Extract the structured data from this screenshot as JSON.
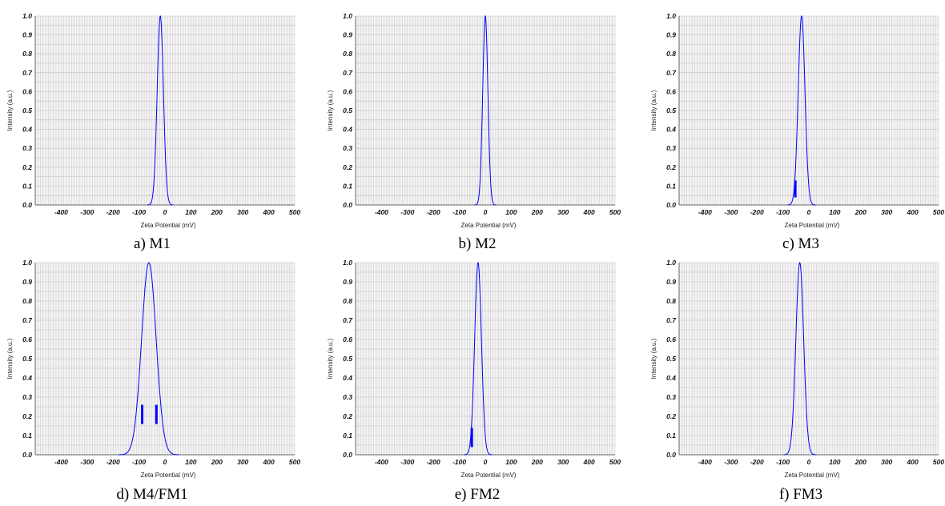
{
  "chart_data": [
    {
      "type": "line",
      "caption": "a) M1",
      "xlabel": "Zeta Potential (mV)",
      "ylabel": "Intensity (a.u.)",
      "xlim": [
        -500,
        500
      ],
      "ylim": [
        0,
        1
      ],
      "x_ticks": [
        "-400",
        "-300",
        "-200",
        "-100",
        "0",
        "100",
        "200",
        "300",
        "400",
        "500"
      ],
      "y_ticks": [
        "0.0",
        "0.1",
        "0.2",
        "0.3",
        "0.4",
        "0.5",
        "0.6",
        "0.7",
        "0.8",
        "0.9",
        "1.0"
      ],
      "grid": true,
      "series": [
        {
          "peak_mV": -18,
          "peak_intensity": 1.0,
          "width_mV": 12,
          "color": "#0000ff"
        }
      ],
      "markers": []
    },
    {
      "type": "line",
      "caption": "b) M2",
      "xlabel": "Zeta Potential (mV)",
      "ylabel": "Intensity (a.u.)",
      "xlim": [
        -500,
        500
      ],
      "ylim": [
        0,
        1
      ],
      "x_ticks": [
        "-400",
        "-300",
        "-200",
        "-100",
        "0",
        "100",
        "200",
        "300",
        "400",
        "500"
      ],
      "y_ticks": [
        "0.0",
        "0.1",
        "0.2",
        "0.3",
        "0.4",
        "0.5",
        "0.6",
        "0.7",
        "0.8",
        "0.9",
        "1.0"
      ],
      "grid": true,
      "series": [
        {
          "peak_mV": 0,
          "peak_intensity": 1.0,
          "width_mV": 10,
          "color": "#0000ff"
        }
      ],
      "markers": []
    },
    {
      "type": "line",
      "caption": "c) M3",
      "xlabel": "Zeta Potential (mV)",
      "ylabel": "Intensity (a.u.)",
      "xlim": [
        -500,
        500
      ],
      "ylim": [
        0,
        1
      ],
      "x_ticks": [
        "-400",
        "-300",
        "-200",
        "-100",
        "0",
        "100",
        "200",
        "300",
        "400",
        "500"
      ],
      "y_ticks": [
        "0.0",
        "0.1",
        "0.2",
        "0.3",
        "0.4",
        "0.5",
        "0.6",
        "0.7",
        "0.8",
        "0.9",
        "1.0"
      ],
      "grid": true,
      "series": [
        {
          "peak_mV": -28,
          "peak_intensity": 1.0,
          "width_mV": 13,
          "color": "#0000ff"
        }
      ],
      "markers": [
        {
          "x_mV": -52,
          "y_low": 0.04,
          "y_high": 0.13
        }
      ]
    },
    {
      "type": "line",
      "caption": "d) M4/FM1",
      "xlabel": "Zeta Potential (mV)",
      "ylabel": "Intensity (a.u.)",
      "xlim": [
        -500,
        500
      ],
      "ylim": [
        0,
        1
      ],
      "x_ticks": [
        "-400",
        "-300",
        "-200",
        "-100",
        "0",
        "100",
        "200",
        "300",
        "400",
        "500"
      ],
      "y_ticks": [
        "0.0",
        "0.1",
        "0.2",
        "0.3",
        "0.4",
        "0.5",
        "0.6",
        "0.7",
        "0.8",
        "0.9",
        "1.0"
      ],
      "grid": true,
      "series": [
        {
          "peak_mV": -62,
          "peak_intensity": 1.0,
          "width_mV": 28,
          "color": "#0000ff"
        }
      ],
      "markers": [
        {
          "x_mV": -88,
          "y_low": 0.16,
          "y_high": 0.26
        },
        {
          "x_mV": -33,
          "y_low": 0.16,
          "y_high": 0.26
        }
      ]
    },
    {
      "type": "line",
      "caption": "e) FM2",
      "xlabel": "Zeta Potential (mV)",
      "ylabel": "Intensity (a.u.)",
      "xlim": [
        -500,
        500
      ],
      "ylim": [
        0,
        1
      ],
      "x_ticks": [
        "-400",
        "-300",
        "-200",
        "-100",
        "0",
        "100",
        "200",
        "300",
        "400",
        "500"
      ],
      "y_ticks": [
        "0.0",
        "0.1",
        "0.2",
        "0.3",
        "0.4",
        "0.5",
        "0.6",
        "0.7",
        "0.8",
        "0.9",
        "1.0"
      ],
      "grid": true,
      "series": [
        {
          "peak_mV": -28,
          "peak_intensity": 1.0,
          "width_mV": 13,
          "color": "#0000ff"
        }
      ],
      "markers": [
        {
          "x_mV": -52,
          "y_low": 0.04,
          "y_high": 0.14
        }
      ]
    },
    {
      "type": "line",
      "caption": "f) FM3",
      "xlabel": "Zeta Potential (mV)",
      "ylabel": "Intensity (a.u.)",
      "xlim": [
        -500,
        500
      ],
      "ylim": [
        0,
        1
      ],
      "x_ticks": [
        "-400",
        "-300",
        "-200",
        "-100",
        "0",
        "100",
        "200",
        "300",
        "400",
        "500"
      ],
      "y_ticks": [
        "0.0",
        "0.1",
        "0.2",
        "0.3",
        "0.4",
        "0.5",
        "0.6",
        "0.7",
        "0.8",
        "0.9",
        "1.0"
      ],
      "grid": true,
      "series": [
        {
          "peak_mV": -35,
          "peak_intensity": 1.0,
          "width_mV": 15,
          "color": "#0000ff"
        }
      ],
      "markers": []
    }
  ],
  "colors": {
    "plot_background": "#f3f3f3",
    "grid": "#bfbfbf",
    "series": "#0000ff",
    "axis": "#666666"
  }
}
